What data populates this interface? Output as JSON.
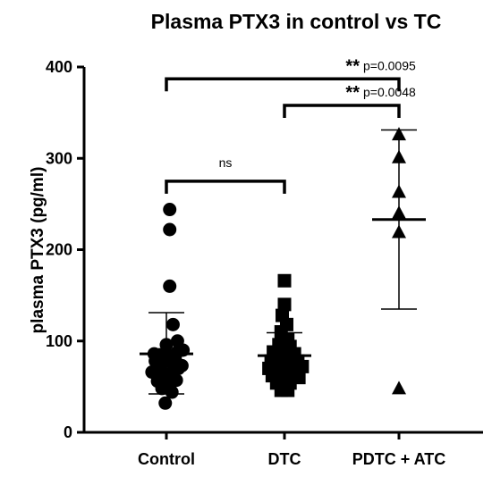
{
  "chart_data": {
    "type": "scatter",
    "title": "Plasma PTX3 in control vs TC",
    "ylabel": "plasma PTX3 (pg/ml)",
    "ylim": [
      0,
      400
    ],
    "yticks": [
      "0",
      "100",
      "200",
      "300",
      "400"
    ],
    "categories": [
      "Control",
      "DTC",
      "PDTC + ATC"
    ],
    "series": [
      {
        "category": "Control",
        "marker": "circle",
        "mean": 86,
        "sd_low": 42,
        "sd_high": 131,
        "points": [
          {
            "x": -0.22,
            "y": 86
          },
          {
            "x": -0.12,
            "y": 85
          },
          {
            "x": -0.04,
            "y": 86
          },
          {
            "x": 0.1,
            "y": 84
          },
          {
            "x": 0.2,
            "y": 88
          },
          {
            "x": 0.3,
            "y": 90
          },
          {
            "x": -0.2,
            "y": 78
          },
          {
            "x": -0.08,
            "y": 76
          },
          {
            "x": 0.04,
            "y": 78
          },
          {
            "x": 0.16,
            "y": 80
          },
          {
            "x": 0.28,
            "y": 73
          },
          {
            "x": -0.26,
            "y": 66
          },
          {
            "x": -0.14,
            "y": 68
          },
          {
            "x": -0.02,
            "y": 64
          },
          {
            "x": 0.12,
            "y": 66
          },
          {
            "x": 0.22,
            "y": 70
          },
          {
            "x": -0.16,
            "y": 56
          },
          {
            "x": -0.04,
            "y": 58
          },
          {
            "x": 0.08,
            "y": 54
          },
          {
            "x": 0.18,
            "y": 57
          },
          {
            "x": -0.08,
            "y": 48
          },
          {
            "x": 0.1,
            "y": 44
          },
          {
            "x": -0.02,
            "y": 32
          },
          {
            "x": 0.0,
            "y": 96
          },
          {
            "x": 0.2,
            "y": 100
          },
          {
            "x": 0.12,
            "y": 118
          },
          {
            "x": 0.06,
            "y": 160
          },
          {
            "x": 0.06,
            "y": 222
          },
          {
            "x": 0.06,
            "y": 244
          }
        ]
      },
      {
        "category": "DTC",
        "marker": "square",
        "mean": 84,
        "sd_low": 60,
        "sd_high": 109,
        "points": [
          {
            "x": 0.0,
            "y": 166
          },
          {
            "x": 0.0,
            "y": 140
          },
          {
            "x": -0.04,
            "y": 128
          },
          {
            "x": 0.04,
            "y": 118
          },
          {
            "x": -0.06,
            "y": 110
          },
          {
            "x": 0.06,
            "y": 102
          },
          {
            "x": -0.1,
            "y": 96
          },
          {
            "x": 0.1,
            "y": 94
          },
          {
            "x": -0.2,
            "y": 88
          },
          {
            "x": -0.06,
            "y": 86
          },
          {
            "x": 0.06,
            "y": 88
          },
          {
            "x": 0.18,
            "y": 86
          },
          {
            "x": -0.24,
            "y": 78
          },
          {
            "x": -0.12,
            "y": 80
          },
          {
            "x": 0.0,
            "y": 79
          },
          {
            "x": 0.12,
            "y": 80
          },
          {
            "x": 0.24,
            "y": 78
          },
          {
            "x": -0.28,
            "y": 70
          },
          {
            "x": -0.16,
            "y": 72
          },
          {
            "x": -0.04,
            "y": 70
          },
          {
            "x": 0.08,
            "y": 71
          },
          {
            "x": 0.2,
            "y": 70
          },
          {
            "x": 0.32,
            "y": 72
          },
          {
            "x": -0.22,
            "y": 62
          },
          {
            "x": -0.1,
            "y": 62
          },
          {
            "x": 0.02,
            "y": 60
          },
          {
            "x": 0.14,
            "y": 62
          },
          {
            "x": 0.26,
            "y": 60
          },
          {
            "x": -0.14,
            "y": 54
          },
          {
            "x": -0.02,
            "y": 52
          },
          {
            "x": 0.1,
            "y": 54
          },
          {
            "x": -0.06,
            "y": 46
          },
          {
            "x": 0.06,
            "y": 46
          }
        ]
      },
      {
        "category": "PDTC + ATC",
        "marker": "triangle",
        "mean": 233,
        "sd_low": 135,
        "sd_high": 331,
        "points": [
          {
            "x": 0.0,
            "y": 327
          },
          {
            "x": 0.0,
            "y": 302
          },
          {
            "x": 0.0,
            "y": 264
          },
          {
            "x": 0.0,
            "y": 241
          },
          {
            "x": 0.0,
            "y": 220
          },
          {
            "x": 0.0,
            "y": 49
          }
        ]
      }
    ],
    "comparisons": [
      {
        "from": "Control",
        "to": "PDTC + ATC",
        "y": 387,
        "stars": "**",
        "p_text": "p=0.0095"
      },
      {
        "from": "DTC",
        "to": "PDTC + ATC",
        "y": 358,
        "stars": "**",
        "p_text": "p=0.0048"
      },
      {
        "from": "Control",
        "to": "DTC",
        "y": 275,
        "stars": "",
        "p_text": "ns"
      }
    ]
  }
}
